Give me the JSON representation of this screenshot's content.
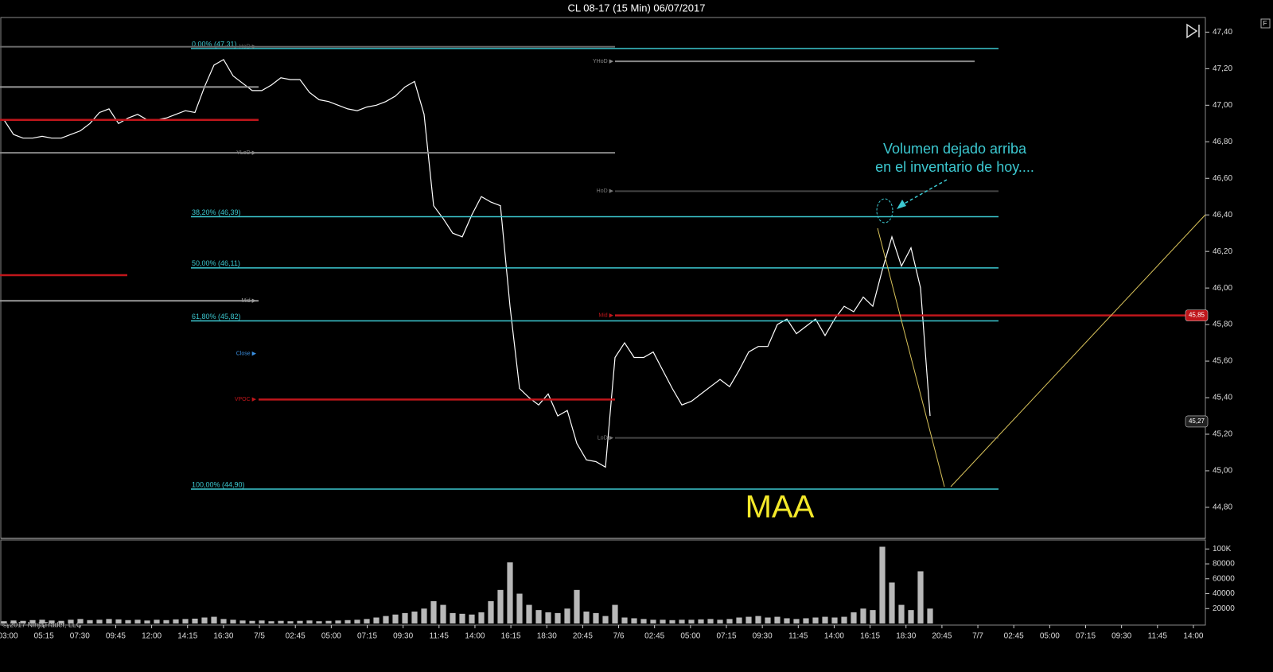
{
  "title": "CL 08-17 (15 Min)  06/07/2017",
  "copyright": "© 2017 NinjaTrader, LLC",
  "toolbar_button": "F",
  "annotations": {
    "note_line1": "Volumen dejado arriba",
    "note_line2": "en el inventario de hoy....",
    "tag": "MAA"
  },
  "time_axis": [
    "03:00",
    "05:15",
    "07:30",
    "09:45",
    "12:00",
    "14:15",
    "16:30",
    "7/5",
    "02:45",
    "05:00",
    "07:15",
    "09:30",
    "11:45",
    "14:00",
    "16:15",
    "18:30",
    "20:45",
    "7/6",
    "02:45",
    "05:00",
    "07:15",
    "09:30",
    "11:45",
    "14:00",
    "16:15",
    "18:30",
    "20:45",
    "7/7",
    "02:45",
    "05:00",
    "07:15",
    "09:30",
    "11:45",
    "14:00"
  ],
  "chart_data": [
    {
      "type": "line",
      "color": "#ffffff",
      "ylim": [
        44.63,
        47.48
      ],
      "yticks": [
        {
          "value": 44.8,
          "label": "44,80"
        },
        {
          "value": 45.0,
          "label": "45,00"
        },
        {
          "value": 45.2,
          "label": "45,20"
        },
        {
          "value": 45.4,
          "label": "45,40"
        },
        {
          "value": 45.6,
          "label": "45,60"
        },
        {
          "value": 45.8,
          "label": "45,80"
        },
        {
          "value": 46.0,
          "label": "46,00"
        },
        {
          "value": 46.2,
          "label": "46,20"
        },
        {
          "value": 46.4,
          "label": "46,40"
        },
        {
          "value": 46.6,
          "label": "46,60"
        },
        {
          "value": 46.8,
          "label": "46,80"
        },
        {
          "value": 47.0,
          "label": "47,00"
        },
        {
          "value": 47.2,
          "label": "47,20"
        },
        {
          "value": 47.4,
          "label": "47,40"
        }
      ],
      "values": [
        46.92,
        46.84,
        46.82,
        46.82,
        46.83,
        46.82,
        46.82,
        46.84,
        46.86,
        46.9,
        46.96,
        46.98,
        46.9,
        46.93,
        46.95,
        46.92,
        46.92,
        46.93,
        46.95,
        46.97,
        46.96,
        47.1,
        47.22,
        47.25,
        47.16,
        47.12,
        47.08,
        47.08,
        47.11,
        47.15,
        47.14,
        47.14,
        47.07,
        47.03,
        47.02,
        47.0,
        46.98,
        46.97,
        46.99,
        47.0,
        47.02,
        47.05,
        47.1,
        47.13,
        46.95,
        46.45,
        46.38,
        46.3,
        46.28,
        46.4,
        46.5,
        46.47,
        46.45,
        45.9,
        45.45,
        45.4,
        45.36,
        45.42,
        45.3,
        45.33,
        45.15,
        45.06,
        45.05,
        45.02,
        45.62,
        45.7,
        45.62,
        45.62,
        45.65,
        45.55,
        45.45,
        45.36,
        45.38,
        45.42,
        45.46,
        45.5,
        45.46,
        45.55,
        45.65,
        45.68,
        45.68,
        45.8,
        45.83,
        45.75,
        45.79,
        45.83,
        45.74,
        45.83,
        45.9,
        45.87,
        45.95,
        45.9,
        46.1,
        46.28,
        46.12,
        46.22,
        46.0,
        45.3
      ],
      "fib_levels": [
        {
          "value": 47.31,
          "label": "0,00% (47,31)"
        },
        {
          "value": 46.39,
          "label": "38,20% (46,39)"
        },
        {
          "value": 46.11,
          "label": "50,00% (46,11)"
        },
        {
          "value": 45.82,
          "label": "61,80% (45,82)"
        },
        {
          "value": 44.9,
          "label": "100,00% (44,90)"
        }
      ],
      "fib_color": "#3cc8d0",
      "levels": [
        {
          "value": 47.32,
          "color": "#666666",
          "span": "prev",
          "label": "HoD ▶"
        },
        {
          "value": 47.24,
          "color": "#888888",
          "span": "y",
          "label": "YHoD ▶"
        },
        {
          "value": 47.1,
          "color": "#999999",
          "span": "pre"
        },
        {
          "value": 46.92,
          "color": "#c0161b",
          "span": "pre"
        },
        {
          "value": 46.74,
          "color": "#888888",
          "span": "prev",
          "label": "YLoD ▶"
        },
        {
          "value": 46.53,
          "color": "#444444",
          "span": "today",
          "label": "HoD ▶"
        },
        {
          "value": 46.07,
          "color": "#c0161b",
          "span": "profile"
        },
        {
          "value": 45.93,
          "color": "#999999",
          "span": "pre",
          "label": "Mid ▶"
        },
        {
          "value": 45.85,
          "color": "#c0161b",
          "span": "now",
          "label": "Mid ▶"
        },
        {
          "value": 45.64,
          "color": "#3a8fe0",
          "span": "none",
          "label": "Close ▶"
        },
        {
          "value": 45.39,
          "color": "#c0161b",
          "span": "vpoc",
          "label": "VPOC ▶"
        },
        {
          "value": 45.18,
          "color": "#444444",
          "span": "today",
          "label": "LoD ▶"
        }
      ],
      "price_badges": [
        {
          "value": 45.85,
          "label": "45,85",
          "color": "#c0161b"
        },
        {
          "value": 45.27,
          "label": "45,27",
          "color": "#222222"
        }
      ]
    },
    {
      "type": "bar",
      "color": "#b8b8b8",
      "ylim": [
        0,
        111000
      ],
      "yticks": [
        20000,
        40000,
        60000,
        80000,
        {
          "value": 100000,
          "label": "100K"
        }
      ],
      "values": [
        3000,
        4000,
        3500,
        4500,
        5000,
        4000,
        3500,
        5000,
        6000,
        4500,
        5000,
        6000,
        5500,
        4500,
        5000,
        4000,
        5000,
        4500,
        5500,
        6000,
        6500,
        8000,
        9000,
        6000,
        5000,
        4000,
        3500,
        4000,
        3000,
        3500,
        3000,
        3500,
        4000,
        3000,
        3500,
        4000,
        4500,
        5000,
        6000,
        8000,
        10000,
        12000,
        14000,
        16000,
        20000,
        30000,
        25000,
        14000,
        13000,
        12000,
        15000,
        30000,
        45000,
        82000,
        40000,
        25000,
        18000,
        15000,
        14000,
        20000,
        45000,
        16000,
        14000,
        10000,
        25000,
        8000,
        7000,
        6000,
        5000,
        5000,
        4500,
        5000,
        5000,
        5500,
        6000,
        5000,
        6000,
        8000,
        9000,
        10000,
        8000,
        9000,
        7000,
        6000,
        7000,
        8000,
        9000,
        8000,
        9000,
        15000,
        20000,
        18000,
        103000,
        55000,
        25000,
        18000,
        70000,
        20000
      ]
    }
  ]
}
